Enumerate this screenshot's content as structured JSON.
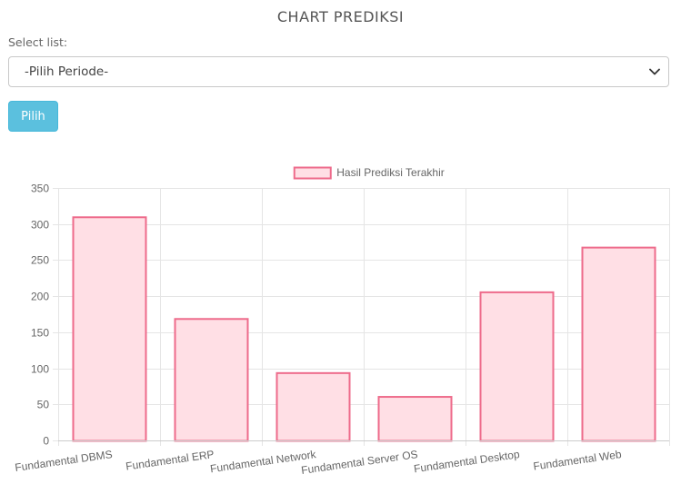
{
  "page": {
    "title": "CHART PREDIKSI"
  },
  "form": {
    "select_label": "Select list:",
    "select_value": "-Pilih Periode-",
    "button_label": "Pilih"
  },
  "colors": {
    "bar_fill": "#ffdfe5",
    "bar_border": "#ee6b8b",
    "button": "#5bc0de",
    "grid": "#e5e5e5"
  },
  "chart_data": {
    "type": "bar",
    "title": "",
    "xlabel": "",
    "ylabel": "",
    "categories": [
      "Fundamental DBMS",
      "Fundamental ERP",
      "Fundamental Network",
      "Fundamental Server OS",
      "Fundamental Desktop",
      "Fundamental Web"
    ],
    "series": [
      {
        "name": "Hasil Prediksi Terakhir",
        "values": [
          310,
          169,
          94,
          61,
          206,
          268
        ]
      }
    ],
    "ylim": [
      0,
      350
    ],
    "yticks": [
      0,
      50,
      100,
      150,
      200,
      250,
      300,
      350
    ],
    "grid": true,
    "legend_position": "top-center"
  }
}
